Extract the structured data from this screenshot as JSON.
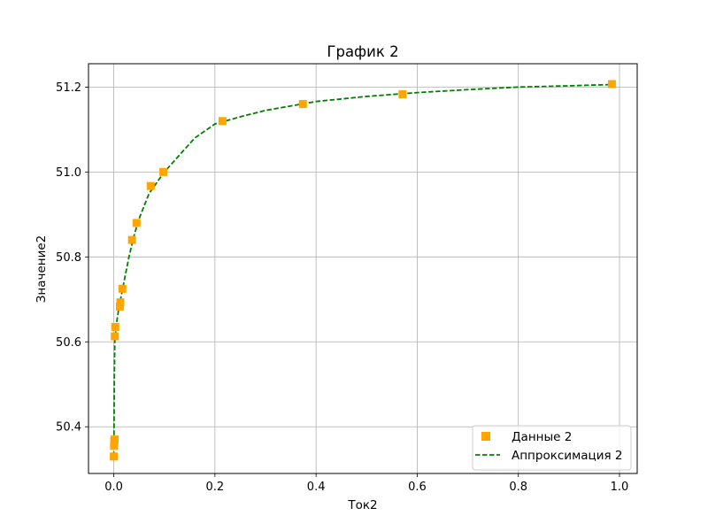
{
  "chart_data": {
    "type": "scatter",
    "title": "График 2",
    "xlabel": "Ток2",
    "ylabel": "Значение2",
    "xlim": [
      -0.05,
      1.035
    ],
    "ylim": [
      50.29,
      51.255
    ],
    "xticks": [
      0.0,
      0.2,
      0.4,
      0.6,
      0.8,
      1.0
    ],
    "xtick_labels": [
      "0.0",
      "0.2",
      "0.4",
      "0.6",
      "0.8",
      "1.0"
    ],
    "yticks": [
      50.4,
      50.6,
      50.8,
      51.0,
      51.2
    ],
    "ytick_labels": [
      "50.4",
      "50.6",
      "50.8",
      "51.0",
      "51.2"
    ],
    "grid": true,
    "legend_position": "lower right",
    "series": [
      {
        "name": "Данные 2",
        "kind": "markers",
        "marker": "square",
        "color": "#FFA500",
        "x": [
          0.0,
          0.0005,
          0.001,
          0.0015,
          0.002,
          0.003,
          0.012,
          0.013,
          0.017,
          0.036,
          0.045,
          0.073,
          0.098,
          0.215,
          0.374,
          0.571,
          0.985
        ],
        "y": [
          50.33,
          50.355,
          50.365,
          50.37,
          50.613,
          50.635,
          50.683,
          50.693,
          50.725,
          50.84,
          50.88,
          50.967,
          51.0,
          51.12,
          51.16,
          51.183,
          51.207
        ]
      },
      {
        "name": "Аппроксимация 2",
        "kind": "line",
        "linestyle": "dashed",
        "color": "#008000",
        "x": [
          0.0,
          0.0005,
          0.001,
          0.002,
          0.005,
          0.01,
          0.015,
          0.02,
          0.03,
          0.04,
          0.05,
          0.07,
          0.1,
          0.13,
          0.16,
          0.2,
          0.25,
          0.3,
          0.4,
          0.5,
          0.6,
          0.7,
          0.8,
          0.9,
          0.985
        ],
        "y": [
          50.33,
          50.4,
          50.5,
          50.6,
          50.64,
          50.68,
          50.71,
          50.74,
          50.8,
          50.85,
          50.89,
          50.95,
          51.0,
          51.04,
          51.08,
          51.113,
          51.13,
          51.145,
          51.166,
          51.178,
          51.187,
          51.194,
          51.2,
          51.203,
          51.206
        ]
      }
    ]
  }
}
